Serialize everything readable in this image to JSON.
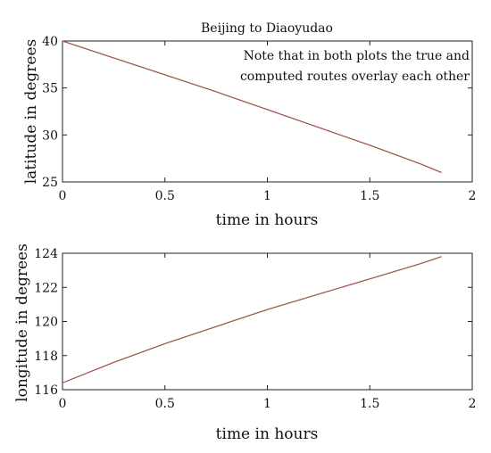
{
  "chart_data": [
    {
      "type": "line",
      "title": "Beijing to Diaoyudao",
      "annotation": [
        "Note that in both plots the true and",
        "computed routes overlay each other"
      ],
      "xlabel": "time in hours",
      "ylabel": "latitude in degrees",
      "xlim": [
        0,
        2
      ],
      "ylim": [
        25,
        40
      ],
      "xticks": [
        0,
        0.5,
        1,
        1.5,
        2
      ],
      "xtick_labels": [
        "0",
        "0.5",
        "1",
        "1.5",
        "2"
      ],
      "yticks": [
        25,
        30,
        35,
        40
      ],
      "ytick_labels": [
        "25",
        "30",
        "35",
        "40"
      ],
      "grid": false,
      "series": [
        {
          "color": "#a05a4e",
          "x": [
            0,
            0.25,
            0.5,
            0.75,
            1.0,
            1.25,
            1.5,
            1.75,
            1.85
          ],
          "y": [
            40,
            38.2,
            36.4,
            34.6,
            32.7,
            30.8,
            28.9,
            26.9,
            26.0
          ]
        }
      ]
    },
    {
      "type": "line",
      "title": "",
      "xlabel": "time in hours",
      "ylabel": "longitude in degrees",
      "xlim": [
        0,
        2
      ],
      "ylim": [
        116,
        124
      ],
      "xticks": [
        0,
        0.5,
        1,
        1.5,
        2
      ],
      "xtick_labels": [
        "0",
        "0.5",
        "1",
        "1.5",
        "2"
      ],
      "yticks": [
        116,
        118,
        120,
        122,
        124
      ],
      "ytick_labels": [
        "116",
        "118",
        "120",
        "122",
        "124"
      ],
      "grid": false,
      "series": [
        {
          "color": "#a05a4e",
          "x": [
            0,
            0.25,
            0.5,
            0.75,
            1.0,
            1.25,
            1.5,
            1.75,
            1.85
          ],
          "y": [
            116.4,
            117.6,
            118.7,
            119.7,
            120.7,
            121.6,
            122.5,
            123.4,
            123.8
          ]
        }
      ]
    }
  ]
}
